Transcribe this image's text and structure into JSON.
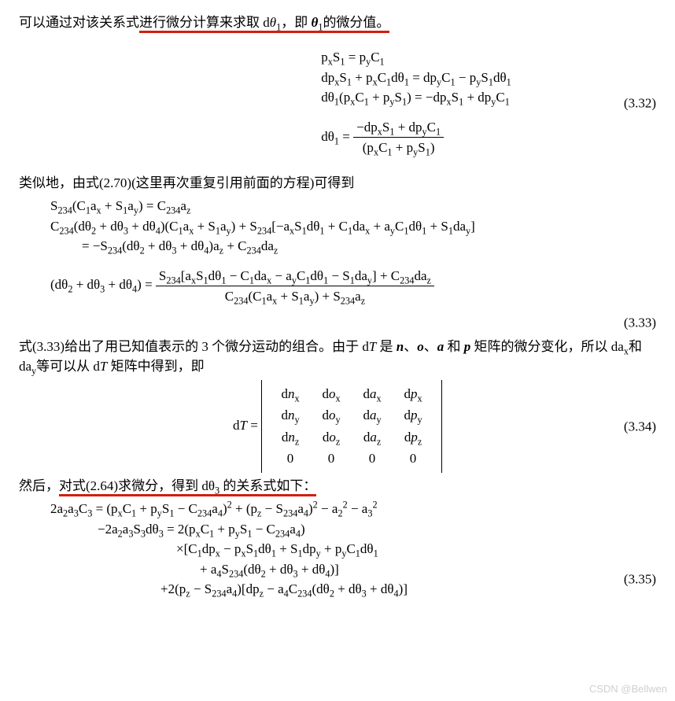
{
  "p1_a": "可以通过对该关系式",
  "p1_b": "进行微分计算来求取 d",
  "p1_theta": "θ",
  "p1_sub1": "1",
  "p1_c": "，即 ",
  "p1_bold": "θ",
  "p1_sub2": "1",
  "p1_d": "的微分值。",
  "eq32": {
    "l1": "p<sub>x</sub>S<sub>1</sub> = p<sub>y</sub>C<sub>1</sub>",
    "l2": "dp<sub>x</sub>S<sub>1</sub> + p<sub>x</sub>C<sub>1</sub>dθ<sub>1</sub> = dp<sub>y</sub>C<sub>1</sub> − p<sub>y</sub>S<sub>1</sub>dθ<sub>1</sub>",
    "l3": "dθ<sub>1</sub>(p<sub>x</sub>C<sub>1</sub> + p<sub>y</sub>S<sub>1</sub>) = −dp<sub>x</sub>S<sub>1</sub> + dp<sub>y</sub>C<sub>1</sub>",
    "l4_lhs": "dθ<sub>1</sub> = ",
    "l4_num": "−dp<sub>x</sub>S<sub>1</sub> + dp<sub>y</sub>C<sub>1</sub>",
    "l4_den": "(p<sub>x</sub>C<sub>1</sub> + p<sub>y</sub>S<sub>1</sub>)",
    "num": "(3.32)"
  },
  "p2": "类似地，由式(2.70)(这里再次重复引用前面的方程)可得到",
  "eq33": {
    "l1": "S<sub>234</sub>(C<sub>1</sub>a<sub>x</sub> + S<sub>1</sub>a<sub>y</sub>) = C<sub>234</sub>a<sub>z</sub>",
    "l2": "C<sub>234</sub>(dθ<sub>2</sub> + dθ<sub>3</sub> + dθ<sub>4</sub>)(C<sub>1</sub>a<sub>x</sub> + S<sub>1</sub>a<sub>y</sub>) + S<sub>234</sub>[−a<sub>x</sub>S<sub>1</sub>dθ<sub>1</sub> + C<sub>1</sub>da<sub>x</sub> + a<sub>y</sub>C<sub>1</sub>dθ<sub>1</sub> + S<sub>1</sub>da<sub>y</sub>]",
    "l3": "= −S<sub>234</sub>(dθ<sub>2</sub> + dθ<sub>3</sub> + dθ<sub>4</sub>)a<sub>z</sub> + C<sub>234</sub>da<sub>z</sub>",
    "l4_lhs": "(dθ<sub>2</sub> + dθ<sub>3</sub> + dθ<sub>4</sub>) = ",
    "l4_num": "S<sub>234</sub>[a<sub>x</sub>S<sub>1</sub>dθ<sub>1</sub> − C<sub>1</sub>da<sub>x</sub> − a<sub>y</sub>C<sub>1</sub>dθ<sub>1</sub> − S<sub>1</sub>da<sub>y</sub>] + C<sub>234</sub>da<sub>z</sub>",
    "l4_den": "C<sub>234</sub>(C<sub>1</sub>a<sub>x</sub> + S<sub>1</sub>a<sub>y</sub>) + S<sub>234</sub>a<sub>z</sub>",
    "num": "(3.33)"
  },
  "p3": "式(3.33)给出了用已知值表示的 3 个微分运动的组合。由于 d<span class=\"ital\">T</span> 是 <b><i>n</i></b>、<b><i>o</i></b>、<b><i>a</i></b> 和 <b><i>p</i></b> 矩阵的微分变化，所以 da<sub>x</sub>和 da<sub>y</sub>等可以从 d<span class=\"ital\">T</span> 矩阵中得到，即",
  "eq34": {
    "lhs": "d<span class=\"ital\">T</span> = ",
    "rows": [
      [
        "d<i>n</i><sub>x</sub>",
        "d<i>o</i><sub>x</sub>",
        "d<i>a</i><sub>x</sub>",
        "d<i>p</i><sub>x</sub>"
      ],
      [
        "d<i>n</i><sub>y</sub>",
        "d<i>o</i><sub>y</sub>",
        "d<i>a</i><sub>y</sub>",
        "d<i>p</i><sub>y</sub>"
      ],
      [
        "d<i>n</i><sub>z</sub>",
        "d<i>o</i><sub>z</sub>",
        "d<i>a</i><sub>z</sub>",
        "d<i>p</i><sub>z</sub>"
      ],
      [
        "0",
        "0",
        "0",
        "0"
      ]
    ],
    "num": "(3.34)"
  },
  "p4_a": "然后，",
  "p4_b": "对式(2.64)求微分，得到 dθ",
  "p4_sub": "3",
  "p4_c": " 的关系式如下：",
  "eq35": {
    "l1": "2a<sub>2</sub>a<sub>3</sub>C<sub>3</sub> = (p<sub>x</sub>C<sub>1</sub> + p<sub>y</sub>S<sub>1</sub> − C<sub>234</sub>a<sub>4</sub>)<sup>2</sup> + (p<sub>z</sub> − S<sub>234</sub>a<sub>4</sub>)<sup>2</sup> − a<sub>2</sub><sup>2</sup> − a<sub>3</sub><sup>2</sup>",
    "l2": "−2a<sub>2</sub>a<sub>3</sub>S<sub>3</sub>dθ<sub>3</sub> = 2(p<sub>x</sub>C<sub>1</sub> + p<sub>y</sub>S<sub>1</sub> − C<sub>234</sub>a<sub>4</sub>)",
    "l3": "×[C<sub>1</sub>dp<sub>x</sub> − p<sub>x</sub>S<sub>1</sub>dθ<sub>1</sub> + S<sub>1</sub>dp<sub>y</sub> + p<sub>y</sub>C<sub>1</sub>dθ<sub>1</sub>",
    "l4": "+ a<sub>4</sub>S<sub>234</sub>(dθ<sub>2</sub> + dθ<sub>3</sub> + dθ<sub>4</sub>)]",
    "l5": "+2(p<sub>z</sub> − S<sub>234</sub>a<sub>4</sub>)[dp<sub>z</sub> − a<sub>4</sub>C<sub>234</sub>(dθ<sub>2</sub> + dθ<sub>3</sub> + dθ<sub>4</sub>)]",
    "num": "(3.35)"
  },
  "watermark": "CSDN @Bellwen",
  "underline_color": "#d01f0e"
}
